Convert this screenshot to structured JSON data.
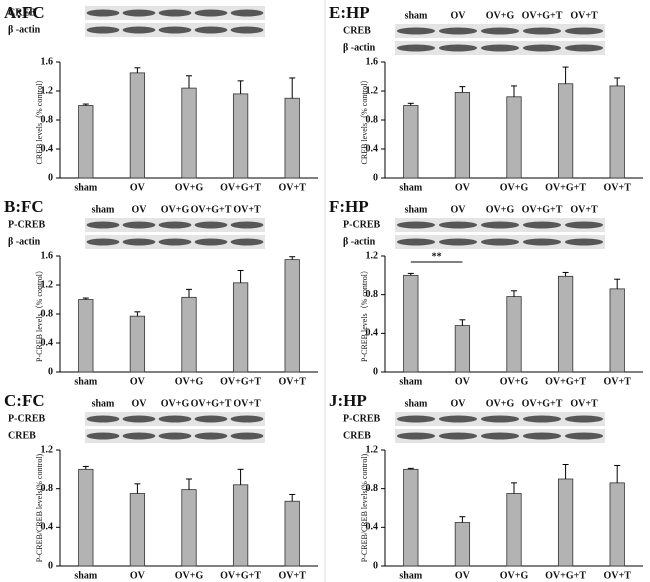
{
  "chart_data": [
    {
      "type": "bar",
      "panel": "A:FC",
      "blot_lanes": [],
      "blot_rows": [
        "CREB",
        "β -actin"
      ],
      "ylabel": "CREB levels（% control）",
      "categories": [
        "sham",
        "OV",
        "OV+G",
        "OV+G+T",
        "OV+T"
      ],
      "values": [
        1.0,
        1.45,
        1.24,
        1.16,
        1.1
      ],
      "errors": [
        0.02,
        0.07,
        0.17,
        0.18,
        0.28
      ],
      "color": "#b3b3b3",
      "ylim": [
        0,
        1.6
      ],
      "yticks": [
        0,
        0.4,
        0.8,
        1.2,
        1.6
      ]
    },
    {
      "type": "bar",
      "panel": "B:FC",
      "blot_lanes": [
        "sham",
        "OV",
        "OV+G",
        "OV+G+T",
        "OV+T"
      ],
      "blot_rows": [
        "P-CREB",
        "β -actin"
      ],
      "ylabel": "P-CREB levels（% control）",
      "categories": [
        "sham",
        "OV",
        "OV+G",
        "OV+G+T",
        "OV+T"
      ],
      "values": [
        1.0,
        0.77,
        1.03,
        1.23,
        1.55
      ],
      "errors": [
        0.02,
        0.06,
        0.11,
        0.17,
        0.04
      ],
      "color": "#b3b3b3",
      "ylim": [
        0,
        1.6
      ],
      "yticks": [
        0,
        0.4,
        0.8,
        1.2,
        1.6
      ]
    },
    {
      "type": "bar",
      "panel": "C:FC",
      "blot_lanes": [
        "sham",
        "OV",
        "OV+G",
        "OV+G+T",
        "OV+T"
      ],
      "blot_rows": [
        "P-CREB",
        "CREB"
      ],
      "ylabel": "P-CREB/CREB levels(% control)",
      "categories": [
        "sham",
        "OV",
        "OV+G",
        "OV+G+T",
        "OV+T"
      ],
      "values": [
        1.0,
        0.75,
        0.79,
        0.84,
        0.67
      ],
      "errors": [
        0.03,
        0.1,
        0.11,
        0.16,
        0.07
      ],
      "color": "#b3b3b3",
      "ylim": [
        0,
        1.2
      ],
      "yticks": [
        0,
        0.4,
        0.8,
        1.2
      ]
    },
    {
      "type": "bar",
      "panel": "E:HP",
      "blot_lanes": [
        "sham",
        "OV",
        "OV+G",
        "OV+G+T",
        "OV+T"
      ],
      "blot_rows": [
        "CREB",
        "β -actin"
      ],
      "ylabel": "CREB levels（% control）",
      "categories": [
        "sham",
        "OV",
        "OV+G",
        "OV+G+T",
        "OV+T"
      ],
      "values": [
        1.0,
        1.18,
        1.12,
        1.3,
        1.27
      ],
      "errors": [
        0.03,
        0.08,
        0.15,
        0.23,
        0.11
      ],
      "color": "#b3b3b3",
      "ylim": [
        0,
        1.6
      ],
      "yticks": [
        0,
        0.4,
        0.8,
        1.2,
        1.6
      ]
    },
    {
      "type": "bar",
      "panel": "F:HP",
      "blot_lanes": [
        "sham",
        "OV",
        "OV+G",
        "OV+G+T",
        "OV+T"
      ],
      "blot_rows": [
        "P-CREB",
        "β -actin"
      ],
      "ylabel": "P-CREB levels（% control）",
      "categories": [
        "sham",
        "OV",
        "OV+G",
        "OV+G+T",
        "OV+T"
      ],
      "values": [
        1.0,
        0.48,
        0.78,
        0.99,
        0.86
      ],
      "errors": [
        0.02,
        0.06,
        0.06,
        0.04,
        0.1
      ],
      "color": "#b3b3b3",
      "ylim": [
        0,
        1.2
      ],
      "yticks": [
        0,
        0.4,
        0.8,
        1.2
      ],
      "annotation": "**"
    },
    {
      "type": "bar",
      "panel": "J:HP",
      "blot_lanes": [
        "sham",
        "OV",
        "OV+G",
        "OV+G+T",
        "OV+T"
      ],
      "blot_rows": [
        "P-CREB",
        "CREB"
      ],
      "ylabel": "P-CREB/CREB levels(% control)",
      "categories": [
        "sham",
        "OV",
        "OV+G",
        "OV+G+T",
        "OV+T"
      ],
      "values": [
        1.0,
        0.45,
        0.75,
        0.9,
        0.86
      ],
      "errors": [
        0.01,
        0.06,
        0.11,
        0.15,
        0.18
      ],
      "color": "#b3b3b3",
      "ylim": [
        0,
        1.2
      ],
      "yticks": [
        0,
        0.4,
        0.8,
        1.2
      ]
    }
  ]
}
